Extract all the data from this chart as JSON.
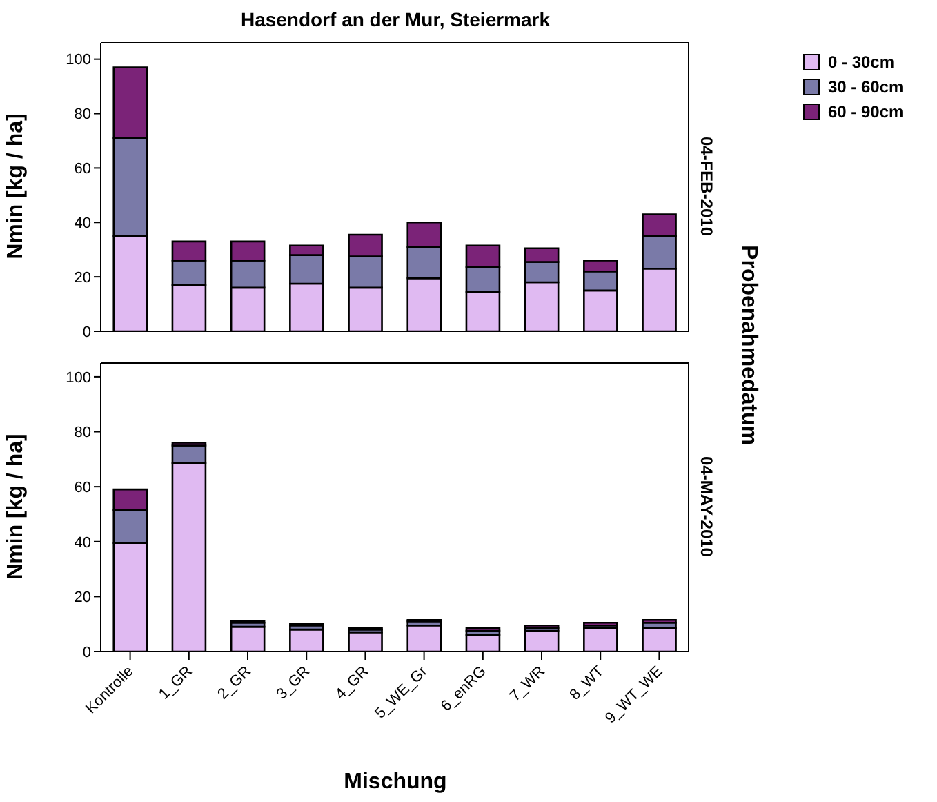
{
  "chart_data": [
    {
      "type": "bar",
      "title": "Hasendorf an der Mur, Steiermark",
      "ylabel": "Nmin [kg / ha]",
      "y2label": "04-FEB-2010",
      "annotations": [
        "Probenahmedatum"
      ],
      "stacked": true,
      "categories": [
        null,
        null,
        null,
        null,
        null,
        null,
        null,
        null,
        null,
        null
      ],
      "series": [
        {
          "name": "0 - 30cm",
          "color": "#e0baf2",
          "values": [
            35,
            17,
            16,
            17.5,
            16,
            19.5,
            14.5,
            18,
            15,
            23
          ]
        },
        {
          "name": "30 - 60cm",
          "color": "#7a7aa8",
          "values": [
            36,
            9,
            10,
            10.5,
            11.5,
            11.5,
            9,
            7.5,
            7,
            12
          ]
        },
        {
          "name": "60 - 90cm",
          "color": "#7b2378",
          "values": [
            26,
            7,
            7,
            3.5,
            8,
            9,
            8,
            5,
            4,
            8
          ]
        }
      ],
      "ylim": [
        0,
        106
      ],
      "yticks": [
        0,
        20,
        40,
        60,
        80,
        100
      ],
      "tick_labels": "y",
      "grid": false,
      "legend": "top right"
    },
    {
      "type": "bar",
      "xlabel": "Mischung",
      "ylabel": "Nmin [kg / ha]",
      "y2label": "04-MAY-2010",
      "stacked": true,
      "categories": [
        "Kontrolle",
        "1_GR",
        "2_GR",
        "3_GR",
        "4_GR",
        "5_WE_Gr",
        "6_enRG",
        "7_WR",
        "8_WT",
        "9_WT_WE"
      ],
      "series": [
        {
          "color": "#e0baf2",
          "values": [
            39.5,
            68.5,
            9,
            8,
            7,
            9.5,
            6,
            7.5,
            8.5,
            8.5
          ]
        },
        {
          "color": "#7a7aa8",
          "values": [
            12,
            6.5,
            1.5,
            1.5,
            1,
            1.5,
            1.5,
            1,
            1,
            2
          ]
        },
        {
          "color": "#7b2378",
          "values": [
            7.5,
            1,
            0.5,
            0.5,
            0.5,
            0.5,
            1,
            1,
            1,
            1
          ]
        }
      ],
      "ylim": [
        0,
        105
      ],
      "yticks": [
        0,
        20,
        40,
        60,
        80,
        100
      ],
      "grid": false
    }
  ]
}
